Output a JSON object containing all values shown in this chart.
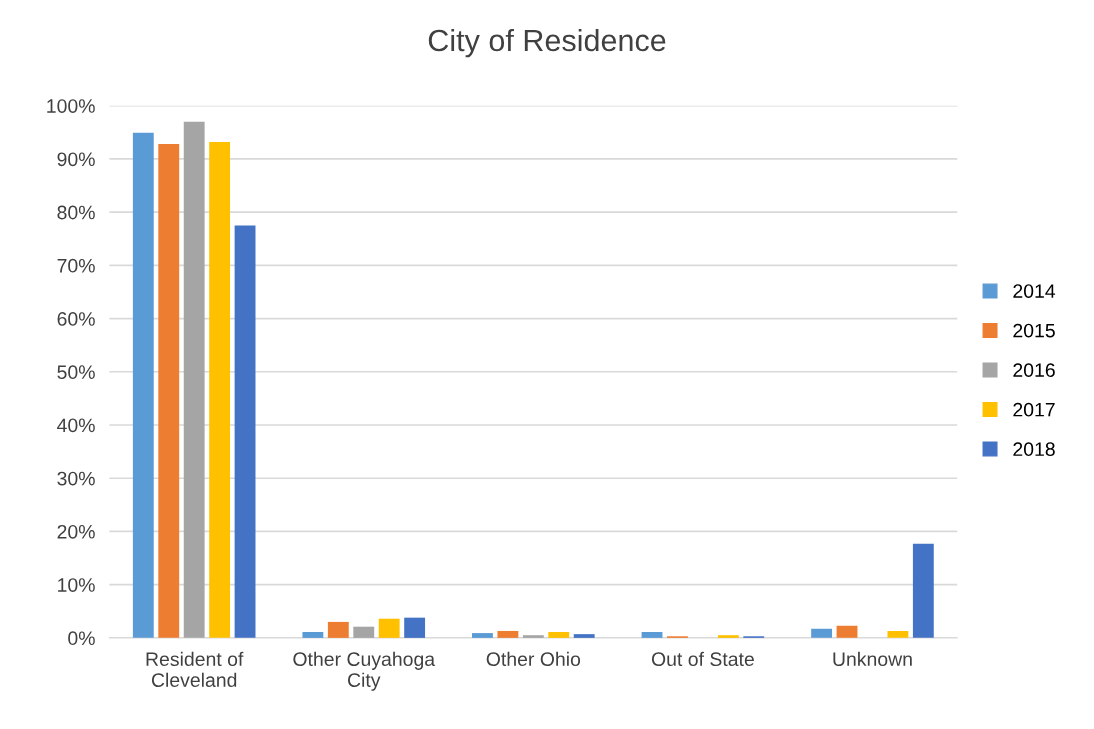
{
  "chart_data": {
    "type": "bar",
    "title": "City of Residence",
    "categories": [
      "Resident of\nCleveland",
      "Other Cuyahoga\nCity",
      "Other Ohio",
      "Out of State",
      "Unknown"
    ],
    "series": [
      {
        "name": "2014",
        "color": "#5b9bd5",
        "values": [
          94.9,
          1.1,
          0.9,
          1.1,
          1.7
        ]
      },
      {
        "name": "2015",
        "color": "#ed7d31",
        "values": [
          92.8,
          3.0,
          1.3,
          0.3,
          2.3
        ]
      },
      {
        "name": "2016",
        "color": "#a5a5a5",
        "values": [
          97.0,
          2.1,
          0.5,
          0,
          0
        ]
      },
      {
        "name": "2017",
        "color": "#ffc000",
        "values": [
          93.2,
          3.6,
          1.1,
          0.5,
          1.3
        ]
      },
      {
        "name": "2018",
        "color": "#4472c4",
        "values": [
          77.5,
          3.8,
          0.7,
          0.3,
          17.7
        ]
      }
    ],
    "ylim": [
      0,
      100
    ],
    "yticks": [
      {
        "value": 0,
        "label": "0%"
      },
      {
        "value": 10,
        "label": "10%"
      },
      {
        "value": 20,
        "label": "20%"
      },
      {
        "value": 30,
        "label": "30%"
      },
      {
        "value": 40,
        "label": "40%"
      },
      {
        "value": 50,
        "label": "50%"
      },
      {
        "value": 60,
        "label": "60%"
      },
      {
        "value": 70,
        "label": "70%"
      },
      {
        "value": 80,
        "label": "80%"
      },
      {
        "value": 90,
        "label": "90%"
      },
      {
        "value": 100,
        "label": "100%"
      }
    ],
    "grid": "y",
    "legend": "right"
  }
}
